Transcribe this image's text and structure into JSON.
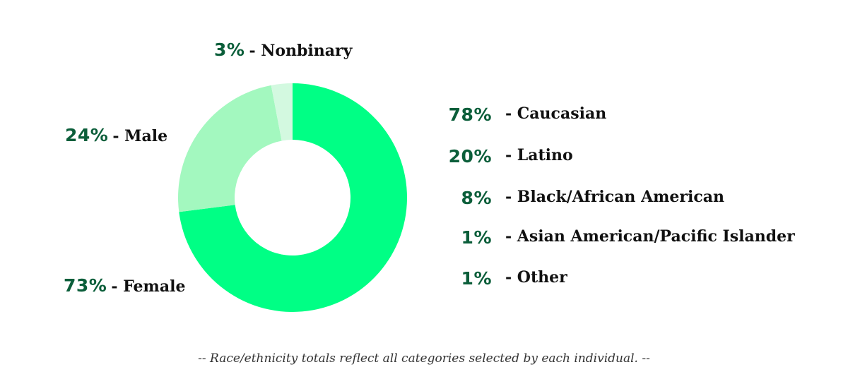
{
  "chart_data": [
    {
      "type": "pie",
      "variant": "donut",
      "categories": [
        "Female",
        "Male",
        "Nonbinary"
      ],
      "values": [
        73,
        24,
        3
      ],
      "labels": [
        "73%",
        "24%",
        "3%"
      ],
      "colors": [
        "#00ff85",
        "#a3f8bf",
        "#d3f9e0"
      ]
    },
    {
      "type": "table",
      "rows": [
        {
          "value": "78%",
          "label": "Caucasian"
        },
        {
          "value": "20%",
          "label": "Latino"
        },
        {
          "value": "8%",
          "label": "Black/African American"
        },
        {
          "value": "1%",
          "label": "Asian American/Pacific Islander"
        },
        {
          "value": "1%",
          "label": "Other"
        }
      ]
    }
  ],
  "gender_labels": {
    "nonbinary": {
      "pct": "3%",
      "text": "- Nonbinary"
    },
    "male": {
      "pct": "24%",
      "text": "- Male"
    },
    "female": {
      "pct": "73%",
      "text": "- Female"
    }
  },
  "race_prefix": "- ",
  "footnote": "--  Race/ethnicity totals reflect all categories selected by each individual.  --",
  "colors": {
    "accent_text": "#0b5e3a",
    "female": "#00ff85",
    "male": "#a3f8bf",
    "nonbinary": "#d3f9e0"
  }
}
